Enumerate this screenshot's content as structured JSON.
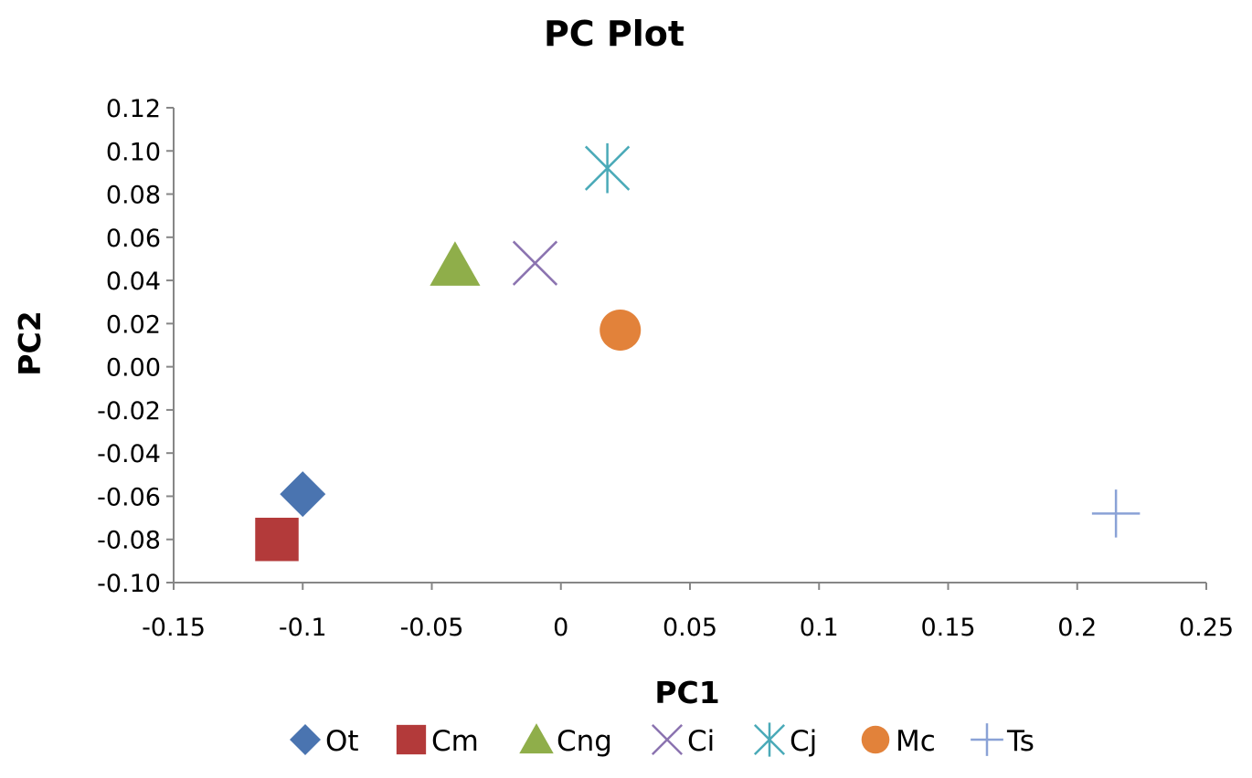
{
  "chart_data": {
    "type": "scatter",
    "title": "PC Plot",
    "xlabel": "PC1",
    "ylabel": "PC2",
    "xlim": [
      -0.15,
      0.25
    ],
    "ylim": [
      -0.1,
      0.12
    ],
    "x_ticks": [
      -0.15,
      -0.1,
      -0.05,
      0,
      0.05,
      0.1,
      0.15,
      0.2,
      0.25
    ],
    "x_tick_labels": [
      "-0.15",
      "-0.1",
      "-0.05",
      "0",
      "0.05",
      "0.1",
      "0.15",
      "0.2",
      "0.25"
    ],
    "y_ticks": [
      0.12,
      0.1,
      0.08,
      0.06,
      0.04,
      0.02,
      0.0,
      -0.02,
      -0.04,
      -0.06,
      -0.08,
      -0.1
    ],
    "y_tick_labels": [
      "0.12",
      "0.10",
      "0.08",
      "0.06",
      "0.04",
      "0.02",
      "0.00",
      "-0.02",
      "-0.04",
      "-0.06",
      "-0.08",
      "-0.10"
    ],
    "grid": false,
    "legend_position": "bottom",
    "series": [
      {
        "name": "Ot",
        "x": -0.1,
        "y": -0.059,
        "marker": "diamond",
        "color": "#4a74b0"
      },
      {
        "name": "Cm",
        "x": -0.11,
        "y": -0.08,
        "marker": "square",
        "color": "#b33a3a"
      },
      {
        "name": "Cng",
        "x": -0.041,
        "y": 0.047,
        "marker": "triangle",
        "color": "#8fae4a"
      },
      {
        "name": "Ci",
        "x": -0.01,
        "y": 0.048,
        "marker": "x",
        "color": "#8b73b0"
      },
      {
        "name": "Cj",
        "x": 0.018,
        "y": 0.092,
        "marker": "star",
        "color": "#4aaab8"
      },
      {
        "name": "Mc",
        "x": 0.023,
        "y": 0.017,
        "marker": "circle",
        "color": "#e2823a"
      },
      {
        "name": "Ts",
        "x": 0.215,
        "y": -0.068,
        "marker": "plus",
        "color": "#8aa2d6"
      }
    ]
  }
}
